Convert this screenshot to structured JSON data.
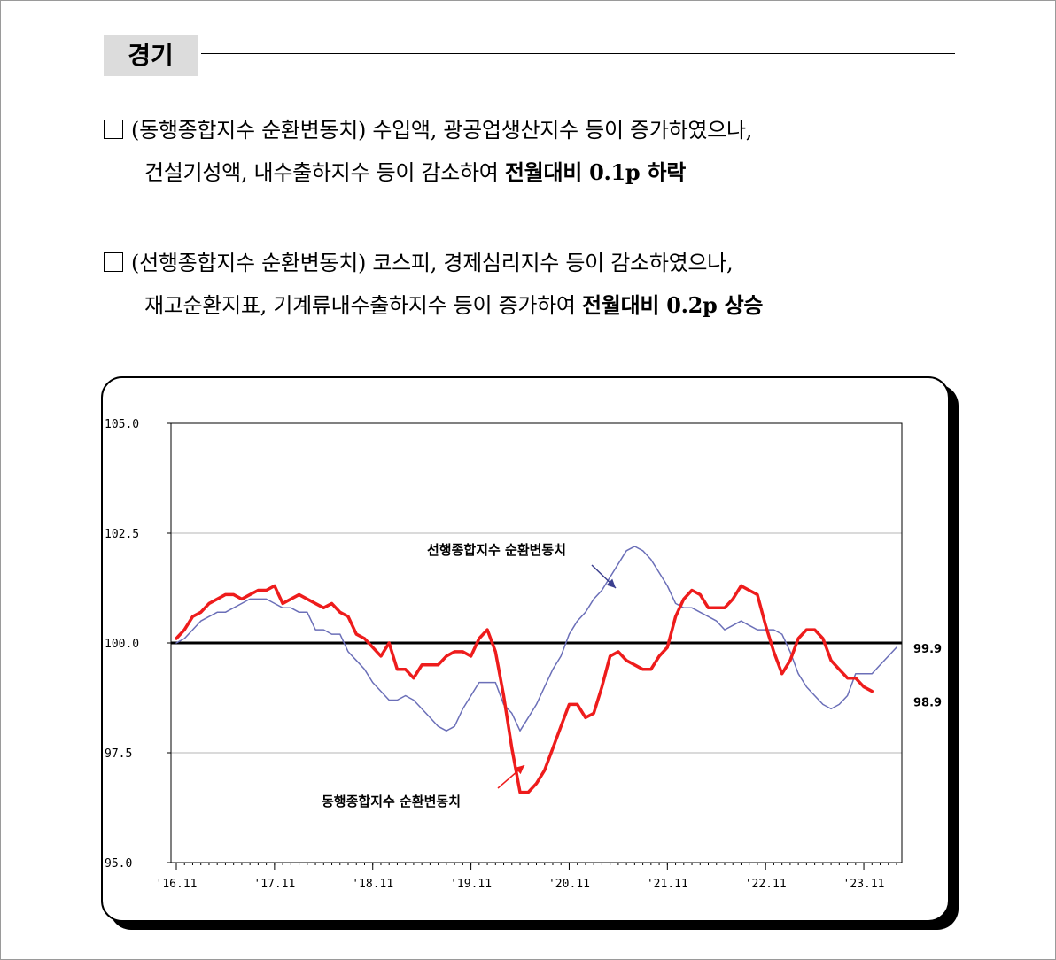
{
  "header": {
    "title": "경기"
  },
  "paragraphs": [
    {
      "lead": "(동행종합지수 순환변동치)",
      "text1": " 수입액, 광공업생산지수 등이 증가하였으나,",
      "text2": "건설기성액, 내수출하지수 등이 감소하여 ",
      "conclusion": "전월대비 0.1p 하락"
    },
    {
      "lead": "(선행종합지수 순환변동치)",
      "text1": " 코스피, 경제심리지수 등이 감소하였으나,",
      "text2": "재고순환지표, 기계류내수출하지수 등이 증가하여 ",
      "conclusion": "전월대비 0.2p 상승"
    }
  ],
  "chart_data": {
    "type": "line",
    "ylim": [
      95.0,
      105.0
    ],
    "yticks": [
      "105.0",
      "102.5",
      "100.0",
      "97.5",
      "95.0"
    ],
    "ytick_values": [
      105.0,
      102.5,
      100.0,
      97.5,
      95.0
    ],
    "xticks": [
      "'16.11",
      "'17.11",
      "'18.11",
      "'19.11",
      "'20.11",
      "'21.11",
      "'22.11",
      "'23.11"
    ],
    "grid": "horizontal",
    "reference_line": 100.0,
    "colors": {
      "leading": "#6b6fb8",
      "coincident": "#ee1c1c",
      "reference": "#000000",
      "grid": "#b4b4b4"
    },
    "series": [
      {
        "name": "선행종합지수 순환변동치",
        "end_label": "99.9",
        "values": [
          100.0,
          100.1,
          100.3,
          100.5,
          100.6,
          100.7,
          100.7,
          100.8,
          100.9,
          101.0,
          101.0,
          101.0,
          100.9,
          100.8,
          100.8,
          100.7,
          100.7,
          100.3,
          100.3,
          100.2,
          100.2,
          99.8,
          99.6,
          99.4,
          99.1,
          98.9,
          98.7,
          98.7,
          98.8,
          98.7,
          98.5,
          98.3,
          98.1,
          98.0,
          98.1,
          98.5,
          98.8,
          99.1,
          99.1,
          99.1,
          98.6,
          98.4,
          98.0,
          98.3,
          98.6,
          99.0,
          99.4,
          99.7,
          100.2,
          100.5,
          100.7,
          101.0,
          101.2,
          101.5,
          101.8,
          102.1,
          102.2,
          102.1,
          101.9,
          101.6,
          101.3,
          100.9,
          100.8,
          100.8,
          100.7,
          100.6,
          100.5,
          100.3,
          100.4,
          100.5,
          100.4,
          100.3,
          100.3,
          100.3,
          100.2,
          99.8,
          99.3,
          99.0,
          98.8,
          98.6,
          98.5,
          98.6,
          98.8,
          99.3,
          99.3,
          99.3,
          99.5,
          99.7,
          99.9
        ]
      },
      {
        "name": "동행종합지수 순환변동치",
        "end_label": "98.9",
        "values": [
          100.1,
          100.3,
          100.6,
          100.7,
          100.9,
          101.0,
          101.1,
          101.1,
          101.0,
          101.1,
          101.2,
          101.2,
          101.3,
          100.9,
          101.0,
          101.1,
          101.0,
          100.9,
          100.8,
          100.9,
          100.7,
          100.6,
          100.2,
          100.1,
          99.9,
          99.7,
          100.0,
          99.4,
          99.4,
          99.2,
          99.5,
          99.5,
          99.5,
          99.7,
          99.8,
          99.8,
          99.7,
          100.1,
          100.3,
          99.8,
          98.8,
          97.6,
          96.6,
          96.6,
          96.8,
          97.1,
          97.6,
          98.1,
          98.6,
          98.6,
          98.3,
          98.4,
          99.0,
          99.7,
          99.8,
          99.6,
          99.5,
          99.4,
          99.4,
          99.7,
          99.9,
          100.6,
          101.0,
          101.2,
          101.1,
          100.8,
          100.8,
          100.8,
          101.0,
          101.3,
          101.2,
          101.1,
          100.4,
          99.8,
          99.3,
          99.6,
          100.1,
          100.3,
          100.3,
          100.1,
          99.6,
          99.4,
          99.2,
          99.2,
          99.0,
          98.9
        ]
      }
    ],
    "annotations": [
      {
        "text": "선행종합지수 순환변동치",
        "series": 0
      },
      {
        "text": "동행종합지수 순환변동치",
        "series": 1
      }
    ]
  }
}
